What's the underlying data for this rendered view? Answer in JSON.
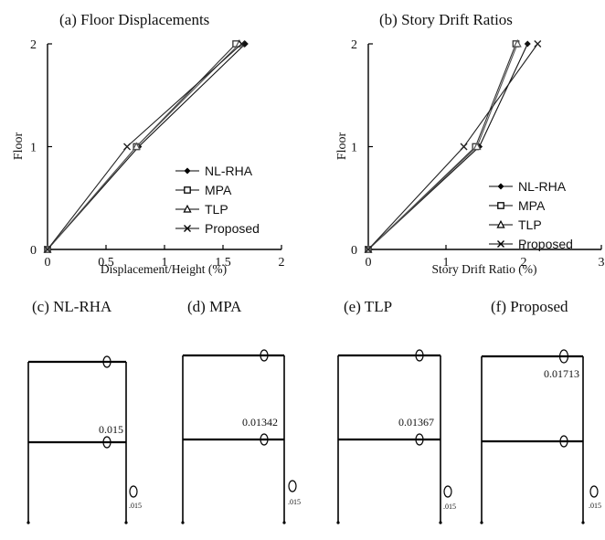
{
  "chart_data": [
    {
      "id": "a",
      "type": "line",
      "title": "(a) Floor Displacements",
      "xlabel": "Displacement/Height (%)",
      "ylabel": "Floor",
      "xlim": [
        0,
        2
      ],
      "ylim": [
        0,
        2
      ],
      "xticks": [
        "0",
        "0.5",
        "1",
        "1.5",
        "2"
      ],
      "yticks": [
        "0",
        "1",
        "2"
      ],
      "legend_position": "bottom-right",
      "series": [
        {
          "name": "NL-RHA",
          "marker": "diamond",
          "x": [
            0,
            0.78,
            1.69
          ],
          "y": [
            0,
            1,
            2
          ]
        },
        {
          "name": "MPA",
          "marker": "square",
          "x": [
            0,
            0.76,
            1.61
          ],
          "y": [
            0,
            1,
            2
          ]
        },
        {
          "name": "TLP",
          "marker": "triangle",
          "x": [
            0,
            0.76,
            1.64
          ],
          "y": [
            0,
            1,
            2
          ]
        },
        {
          "name": "Proposed",
          "marker": "x",
          "x": [
            0,
            0.68,
            1.66
          ],
          "y": [
            0,
            1,
            2
          ]
        }
      ]
    },
    {
      "id": "b",
      "type": "line",
      "title": "(b) Story Drift Ratios",
      "xlabel": "Story Drift Ratio (%)",
      "ylabel": "Floor",
      "xlim": [
        0,
        3
      ],
      "ylim": [
        0,
        2
      ],
      "xticks": [
        "0",
        "1",
        "2",
        "3"
      ],
      "yticks": [
        "0",
        "1",
        "2"
      ],
      "legend_position": "bottom-right",
      "series": [
        {
          "name": "NL-RHA",
          "marker": "diamond",
          "x": [
            0,
            1.43,
            2.05
          ],
          "y": [
            0,
            1,
            2
          ]
        },
        {
          "name": "MPA",
          "marker": "square",
          "x": [
            0,
            1.38,
            1.9
          ],
          "y": [
            0,
            1,
            2
          ]
        },
        {
          "name": "TLP",
          "marker": "triangle",
          "x": [
            0,
            1.4,
            1.92
          ],
          "y": [
            0,
            1,
            2
          ]
        },
        {
          "name": "Proposed",
          "marker": "x",
          "x": [
            0,
            1.23,
            2.18
          ],
          "y": [
            0,
            1,
            2
          ]
        }
      ]
    }
  ],
  "frames": [
    {
      "id": "c",
      "title": "(c) NL-RHA",
      "value_label": "0.015",
      "value_level": "floor-1",
      "scale_label": ".015"
    },
    {
      "id": "d",
      "title": "(d) MPA",
      "value_label": "0.01342",
      "value_level": "floor-1",
      "scale_label": ".015"
    },
    {
      "id": "e",
      "title": "(e) TLP",
      "value_label": "0.01367",
      "value_level": "floor-1",
      "scale_label": ".015"
    },
    {
      "id": "f",
      "title": "(f) Proposed",
      "value_label": "0.01713",
      "value_level": "floor-2",
      "scale_label": ".015"
    }
  ]
}
